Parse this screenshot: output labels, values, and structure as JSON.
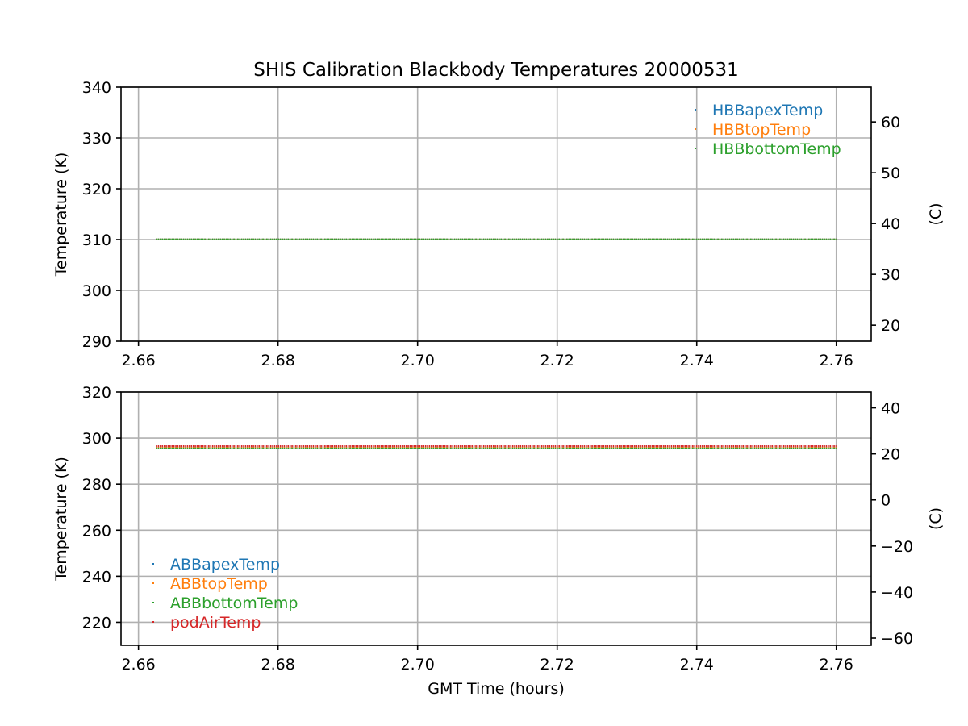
{
  "figure": {
    "title": "SHIS Calibration Blackbody Temperatures 20000531"
  },
  "chart_data": [
    {
      "type": "scatter",
      "panel": "top",
      "title": "SHIS Calibration Blackbody Temperatures 20000531",
      "xlabel": "",
      "ylabel": "Temperature (K)",
      "y2label": "(C)",
      "xlim": [
        2.6575,
        2.765
      ],
      "ylim": [
        290,
        340
      ],
      "y2lim": [
        16.85,
        66.85
      ],
      "xticks": [
        "2.66",
        "2.68",
        "2.70",
        "2.72",
        "2.74",
        "2.76"
      ],
      "xtick_values": [
        2.66,
        2.68,
        2.7,
        2.72,
        2.74,
        2.76
      ],
      "yticks": [
        "290",
        "300",
        "310",
        "320",
        "330",
        "340"
      ],
      "ytick_values": [
        290,
        300,
        310,
        320,
        330,
        340
      ],
      "y2ticks": [
        "20",
        "30",
        "40",
        "50",
        "60"
      ],
      "y2tick_values": [
        20,
        30,
        40,
        50,
        60
      ],
      "grid": true,
      "legend_position": "upper-right",
      "x_start": 2.6625,
      "x_end": 2.76,
      "series": [
        {
          "name": "HBBapexTemp",
          "color": "#1f77b4",
          "value": 310.05
        },
        {
          "name": "HBBtopTemp",
          "color": "#ff7f0e",
          "value": 310.03
        },
        {
          "name": "HBBbottomTemp",
          "color": "#2ca02c",
          "value": 310.02
        }
      ]
    },
    {
      "type": "scatter",
      "panel": "bottom",
      "title": "",
      "xlabel": "GMT Time (hours)",
      "ylabel": "Temperature (K)",
      "y2label": "(C)",
      "xlim": [
        2.6575,
        2.765
      ],
      "ylim": [
        210,
        320
      ],
      "y2lim": [
        -63.15,
        46.85
      ],
      "xticks": [
        "2.66",
        "2.68",
        "2.70",
        "2.72",
        "2.74",
        "2.76"
      ],
      "xtick_values": [
        2.66,
        2.68,
        2.7,
        2.72,
        2.74,
        2.76
      ],
      "yticks": [
        "220",
        "240",
        "260",
        "280",
        "300",
        "320"
      ],
      "ytick_values": [
        220,
        240,
        260,
        280,
        300,
        320
      ],
      "y2ticks": [
        "−60",
        "−40",
        "−20",
        "0",
        "20",
        "40"
      ],
      "y2tick_values": [
        -60,
        -40,
        -20,
        0,
        20,
        40
      ],
      "grid": true,
      "legend_position": "lower-left",
      "x_start": 2.6625,
      "x_end": 2.76,
      "series": [
        {
          "name": "ABBapexTemp",
          "color": "#1f77b4",
          "value": 295.9
        },
        {
          "name": "ABBtopTemp",
          "color": "#ff7f0e",
          "value": 295.8
        },
        {
          "name": "ABBbottomTemp",
          "color": "#2ca02c",
          "value": 295.5
        },
        {
          "name": "podAirTemp",
          "color": "#d62728",
          "value": 296.5
        }
      ]
    }
  ]
}
